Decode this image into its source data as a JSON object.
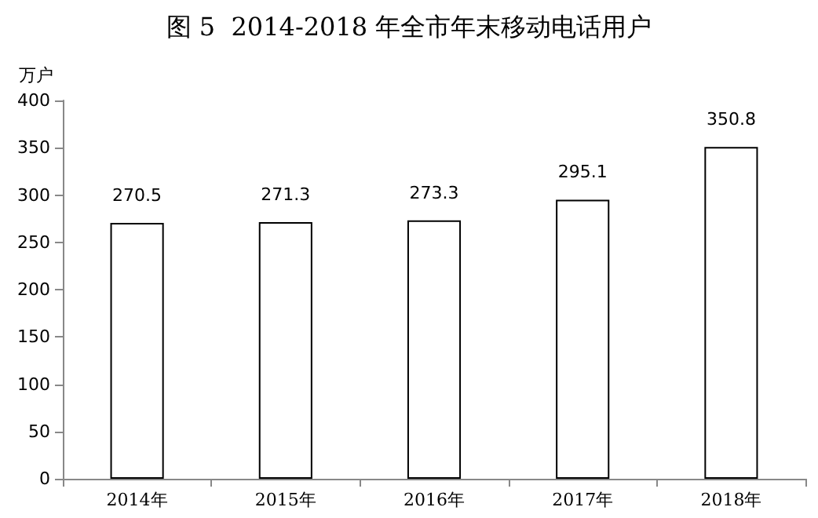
{
  "chart_data": {
    "type": "bar",
    "title": "图 5  2014-2018 年全市年末移动电话用户",
    "ylabel": "万户",
    "categories": [
      "2014年",
      "2015年",
      "2016年",
      "2017年",
      "2018年"
    ],
    "values": [
      270.5,
      271.3,
      273.3,
      295.1,
      350.8
    ],
    "color": "#ffffff",
    "ylim": [
      0,
      400
    ],
    "yticks": [
      0,
      50,
      100,
      150,
      200,
      250,
      300,
      350,
      400
    ],
    "grid": false,
    "data_labels": true
  }
}
